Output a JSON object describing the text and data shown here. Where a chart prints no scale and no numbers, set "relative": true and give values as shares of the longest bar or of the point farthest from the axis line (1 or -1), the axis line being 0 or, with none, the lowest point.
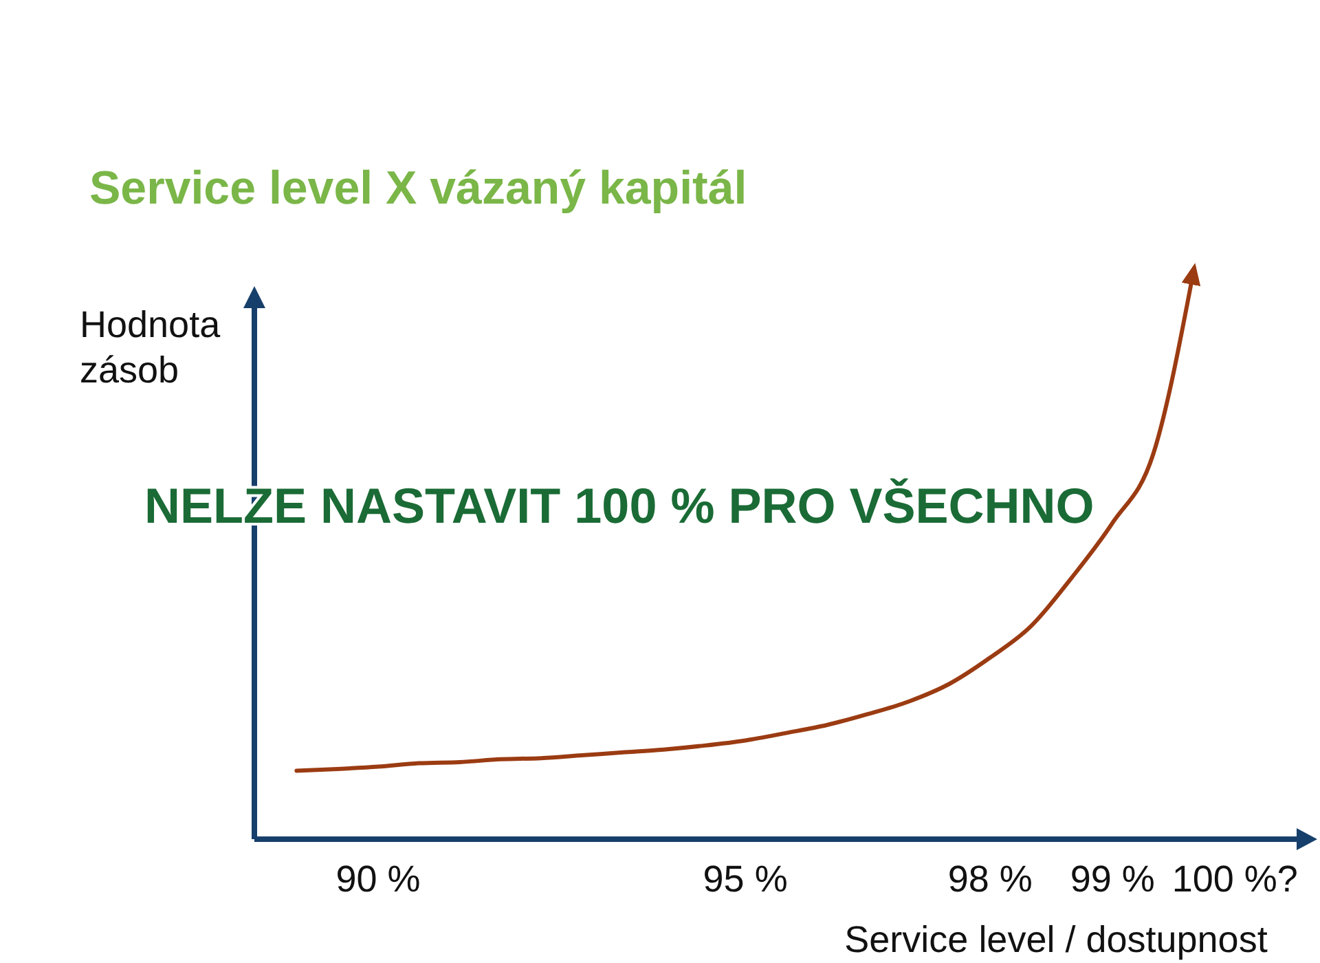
{
  "chart_data": {
    "type": "line",
    "title": "Service level X vázaný kapitál",
    "ylabel": "Hodnota zásob",
    "xlabel": "Service level / dostupnost",
    "annotations": [
      "NELZE NASTAVIT 100 % PRO VŠECHNO"
    ],
    "relative": true,
    "categories": [
      null,
      null,
      "90 %",
      null,
      null,
      null,
      null,
      null,
      null,
      null,
      null,
      "95 %",
      null,
      null,
      null,
      null,
      null,
      "98 %",
      null,
      null,
      "99 %",
      null,
      null,
      "100 %?",
      null
    ],
    "grid": false,
    "marker": "none",
    "line_style": "solid",
    "series": [
      {
        "color": "#9b3b12",
        "values": [
          0.12,
          0.123,
          0.127,
          0.133,
          0.135,
          0.14,
          0.142,
          0.147,
          0.152,
          0.157,
          0.164,
          0.173,
          0.186,
          0.2,
          0.219,
          0.241,
          0.272,
          0.318,
          0.373,
          0.458,
          0.554,
          0.675,
          1,
          null,
          null
        ]
      }
    ]
  }
}
